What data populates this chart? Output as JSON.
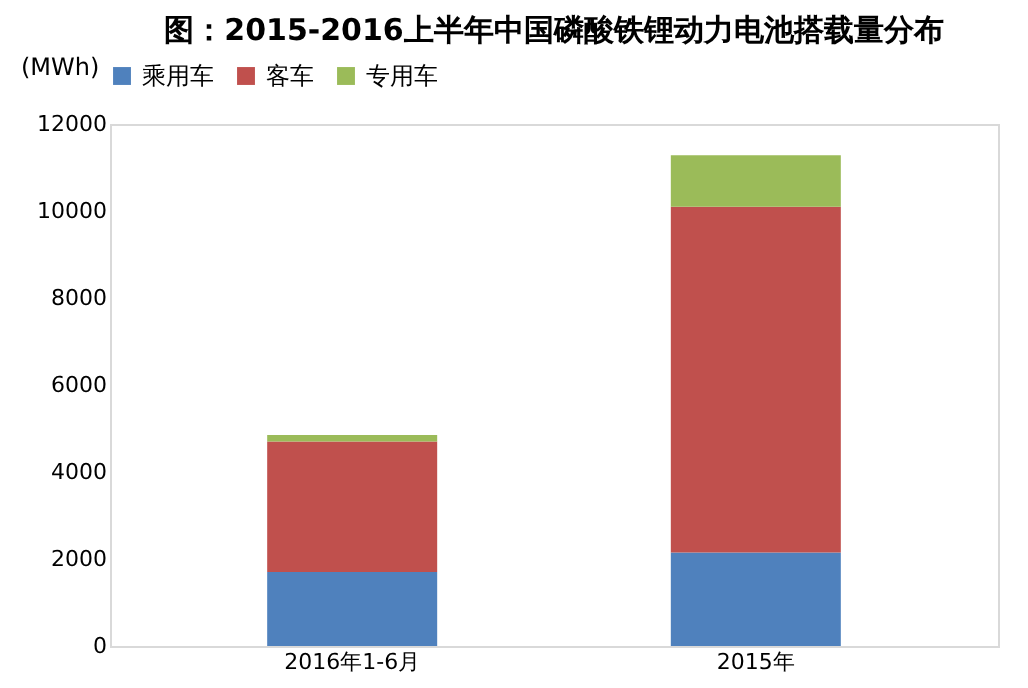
{
  "chart_data": {
    "type": "bar",
    "title": "图：2015-2016上半年中国磷酸铁锂动力电池搭载量分布",
    "ylabel": "(MWh)",
    "categories": [
      "2016年1-6月",
      "2015年"
    ],
    "stacked": true,
    "series": [
      {
        "name": "乘用车",
        "color": "#4f81bd",
        "values": [
          1700,
          2150
        ]
      },
      {
        "name": "客车",
        "color": "#c0504d",
        "values": [
          3000,
          7950
        ]
      },
      {
        "name": "专用车",
        "color": "#9bbb59",
        "values": [
          150,
          1180
        ]
      }
    ],
    "ylim": [
      0,
      12000
    ],
    "yticks": [
      0,
      2000,
      4000,
      6000,
      8000,
      10000,
      12000
    ],
    "grid": false,
    "legend": "top"
  }
}
